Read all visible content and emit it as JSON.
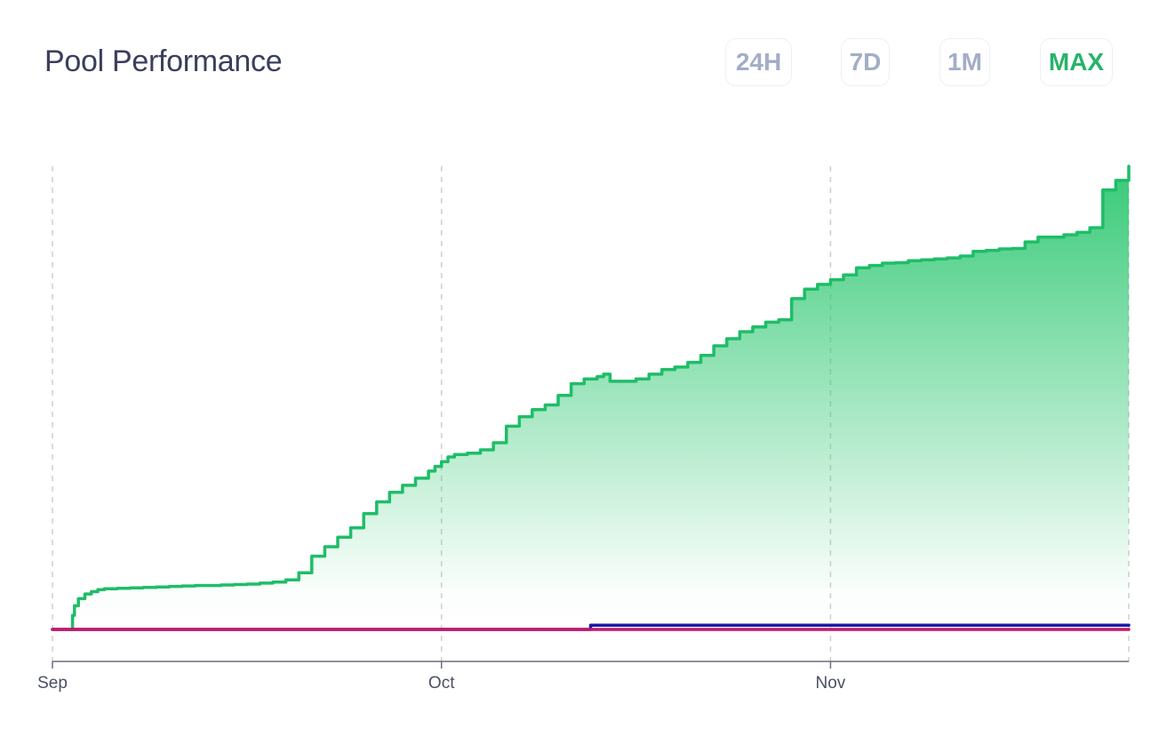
{
  "header": {
    "title": "Pool Performance",
    "ranges": [
      {
        "label": "24H",
        "active": false
      },
      {
        "label": "7D",
        "active": false
      },
      {
        "label": "1M",
        "active": false
      },
      {
        "label": "MAX",
        "active": true
      }
    ]
  },
  "colors": {
    "green": "#1fbd68",
    "blue": "#1a1aa6",
    "magenta": "#c2186b",
    "grid": "#cfcfcf",
    "axis": "#6b6f80"
  },
  "chart_data": {
    "type": "area",
    "title": "",
    "xlabel": "",
    "ylabel": "",
    "x_ticks": [
      "Sep",
      "Oct",
      "Nov"
    ],
    "grid": "vertical dashed",
    "legend": "none",
    "series": [
      {
        "color": "#1fbd68",
        "fill": true,
        "x": [
          1.5,
          1.55,
          1.7,
          2.0,
          2.5,
          3.0,
          3.5,
          4.0,
          5.0,
          6.0,
          7.0,
          8.0,
          9.0,
          10.0,
          11.0,
          12.0,
          13.0,
          14.0,
          15.0,
          16.0,
          17.0,
          18.0,
          19.0,
          20.0,
          21.0,
          22.0,
          23.0,
          24.0,
          25.0,
          26.0,
          27.0,
          28.0,
          29.0,
          29.5,
          30.0,
          30.5,
          31.0,
          32.0,
          33.0,
          34.0,
          35.0,
          36.0,
          37.0,
          38.0,
          39.0,
          40.0,
          41.0,
          42.0,
          42.5,
          43.0,
          44.0,
          45.0,
          46.0,
          47.0,
          48.0,
          49.0,
          50.0,
          51.0,
          52.0,
          53.0,
          54.0,
          55.0,
          56.0,
          57.0,
          58.0,
          59.0,
          60.0,
          61.0,
          62.0,
          63.0,
          64.0,
          65.0,
          66.0,
          67.0,
          68.0,
          69.0,
          70.0,
          71.0,
          72.0,
          73.0,
          74.0,
          75.0,
          76.0,
          77.0,
          78.0,
          79.0,
          80.0,
          81.0,
          82.0,
          83.0
        ],
        "y": [
          0,
          3,
          5,
          6.5,
          7.5,
          8.0,
          8.4,
          8.6,
          8.7,
          8.8,
          8.9,
          9.0,
          9.1,
          9.2,
          9.3,
          9.3,
          9.4,
          9.5,
          9.6,
          9.8,
          10.0,
          10.5,
          12.0,
          15.5,
          17.5,
          19.5,
          21.5,
          24.5,
          27.0,
          29.0,
          30.5,
          32.0,
          33.5,
          34.5,
          35.5,
          36.5,
          37.0,
          37.3,
          38.0,
          39.5,
          43.0,
          45.0,
          46.5,
          47.5,
          49.5,
          52.0,
          53.0,
          53.5,
          54.0,
          52.5,
          52.5,
          53.0,
          54.0,
          55.0,
          55.5,
          56.5,
          58.0,
          60.0,
          61.5,
          63.0,
          64.0,
          65.0,
          65.5,
          70.0,
          72.0,
          73.0,
          74.0,
          75.0,
          76.5,
          77.0,
          77.5,
          77.6,
          78.0,
          78.2,
          78.4,
          78.6,
          79.0,
          80.0,
          80.2,
          80.5,
          80.6,
          82.0,
          83.0,
          83.0,
          83.5,
          84.0,
          85.0,
          93.0,
          95.0,
          98.0
        ]
      },
      {
        "color": "#1a1aa6",
        "fill": false,
        "x": [
          0,
          40,
          41.5,
          83
        ],
        "y": [
          0,
          0,
          0.9,
          0.9
        ]
      },
      {
        "color": "#c2186b",
        "fill": false,
        "x": [
          0,
          83
        ],
        "y": [
          0,
          0
        ]
      }
    ]
  }
}
